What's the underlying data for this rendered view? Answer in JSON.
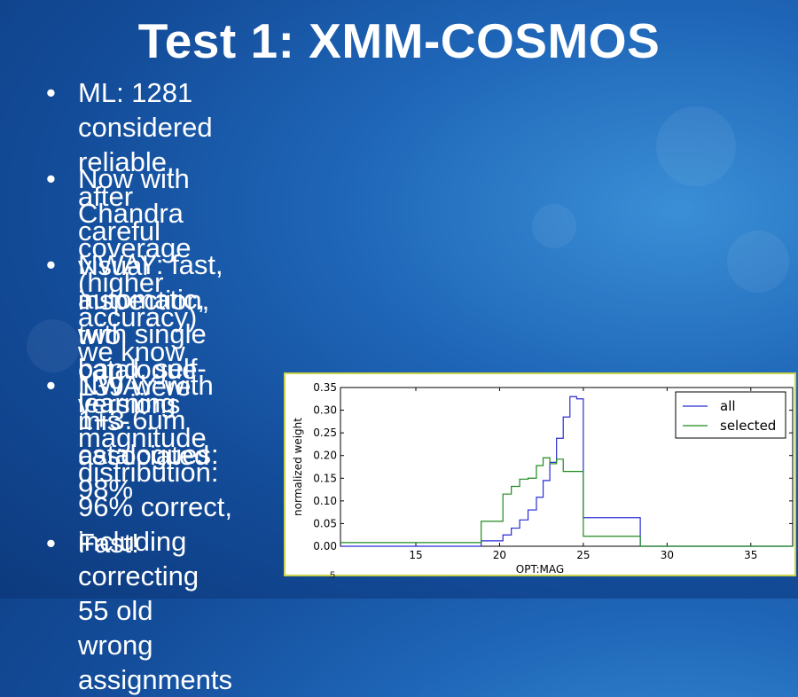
{
  "slide": {
    "title": "Test 1: XMM-COSMOS",
    "bullets": [
      {
        "marker": "•",
        "text": "ML: 1281 considered reliable, after careful\nvisual inspection, two catalogue versions"
      },
      {
        "marker": "•",
        "text": "Now with Chandra coverage (higher accuracy)\nwe know 139 were mis-associated"
      },
      {
        "marker": "•",
        "text": "NWAY: fast, automatic, with single band, self-\nlearning magnitude distribution: 96% correct,\nincluding correcting 55 old wrong assignments"
      },
      {
        "marker": "•",
        "text": "NWAY with\n1+3.6um\ncatalogues:\n98%"
      },
      {
        "marker": "•",
        "text": "Fast!"
      }
    ],
    "page_number": "5"
  },
  "chart_data": {
    "type": "line",
    "title": "",
    "xlabel": "OPT:MAG",
    "ylabel": "normalized weight",
    "xlim": [
      10.5,
      37.5
    ],
    "ylim": [
      0,
      0.35
    ],
    "xticks": [
      "15",
      "20",
      "25",
      "30",
      "35"
    ],
    "yticks": [
      "0.00",
      "0.05",
      "0.10",
      "0.15",
      "0.20",
      "0.25",
      "0.30",
      "0.35"
    ],
    "legend_position": "top-right",
    "grid": false,
    "series": [
      {
        "name": "all",
        "color": "#2a2ad6",
        "steps": [
          [
            10.5,
            18.9,
            0.0
          ],
          [
            18.9,
            20.2,
            0.012
          ],
          [
            20.2,
            20.7,
            0.025
          ],
          [
            20.7,
            21.2,
            0.04
          ],
          [
            21.2,
            21.7,
            0.058
          ],
          [
            21.7,
            22.2,
            0.08
          ],
          [
            22.2,
            22.6,
            0.108
          ],
          [
            22.6,
            23.0,
            0.145
          ],
          [
            23.0,
            23.4,
            0.185
          ],
          [
            23.4,
            23.8,
            0.238
          ],
          [
            23.8,
            24.2,
            0.285
          ],
          [
            24.2,
            24.6,
            0.33
          ],
          [
            24.6,
            25.0,
            0.325
          ],
          [
            25.0,
            28.4,
            0.063
          ],
          [
            28.4,
            37.5,
            0.0
          ]
        ]
      },
      {
        "name": "selected",
        "color": "#1e8a1e",
        "steps": [
          [
            10.5,
            18.9,
            0.008
          ],
          [
            18.9,
            20.2,
            0.055
          ],
          [
            20.2,
            20.7,
            0.115
          ],
          [
            20.7,
            21.2,
            0.132
          ],
          [
            21.2,
            21.7,
            0.148
          ],
          [
            21.7,
            22.2,
            0.15
          ],
          [
            22.2,
            22.6,
            0.178
          ],
          [
            22.6,
            23.0,
            0.195
          ],
          [
            23.0,
            23.4,
            0.182
          ],
          [
            23.4,
            23.8,
            0.192
          ],
          [
            23.8,
            25.0,
            0.165
          ],
          [
            25.0,
            28.4,
            0.022
          ],
          [
            28.4,
            37.5,
            0.0
          ]
        ]
      }
    ]
  }
}
